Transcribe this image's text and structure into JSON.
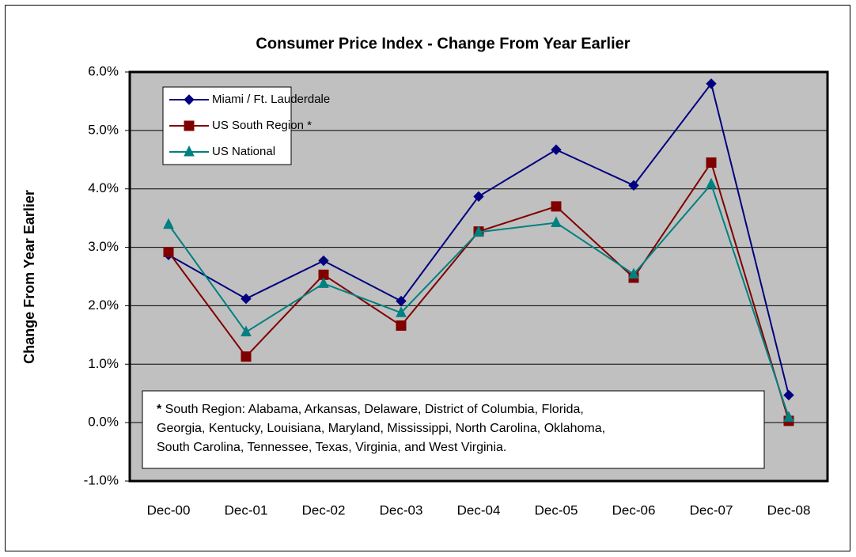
{
  "chart_data": {
    "type": "line",
    "title": "Consumer Price Index  - Change From Year Earlier",
    "y_label": "Change From Year Earlier",
    "categories": [
      "Dec-00",
      "Dec-01",
      "Dec-02",
      "Dec-03",
      "Dec-04",
      "Dec-05",
      "Dec-06",
      "Dec-07",
      "Dec-08"
    ],
    "series": [
      {
        "name": "Miami / Ft. Lauderdale",
        "color": "#000080",
        "marker": "diamond",
        "values": [
          2.87,
          2.12,
          2.77,
          2.08,
          3.87,
          4.67,
          4.06,
          5.8,
          0.47
        ]
      },
      {
        "name": "US South Region *",
        "color": "#800000",
        "marker": "square",
        "values": [
          2.92,
          1.13,
          2.53,
          1.66,
          3.27,
          3.7,
          2.48,
          4.45,
          0.03
        ]
      },
      {
        "name": "US National",
        "color": "#008080",
        "marker": "triangle",
        "values": [
          3.39,
          1.55,
          2.38,
          1.88,
          3.26,
          3.42,
          2.54,
          4.08,
          0.09
        ]
      }
    ],
    "ylim": [
      -1,
      6
    ],
    "yticks": [
      {
        "value": -1,
        "label": "-1.0%"
      },
      {
        "value": 0,
        "label": "0.0%"
      },
      {
        "value": 1,
        "label": "1.0%"
      },
      {
        "value": 2,
        "label": "2.0%"
      },
      {
        "value": 3,
        "label": "3.0%"
      },
      {
        "value": 4,
        "label": "4.0%"
      },
      {
        "value": 5,
        "label": "5.0%"
      },
      {
        "value": 6,
        "label": "6.0%"
      }
    ],
    "grid": true,
    "legend": "upper left",
    "note_marker": "*",
    "note_lines": [
      " South Region: Alabama, Arkansas, Delaware, District of Columbia, Florida,",
      "Georgia, Kentucky, Louisiana, Maryland, Mississippi, North Carolina, Oklahoma,",
      "South Carolina, Tennessee, Texas, Virginia, and West Virginia."
    ]
  }
}
